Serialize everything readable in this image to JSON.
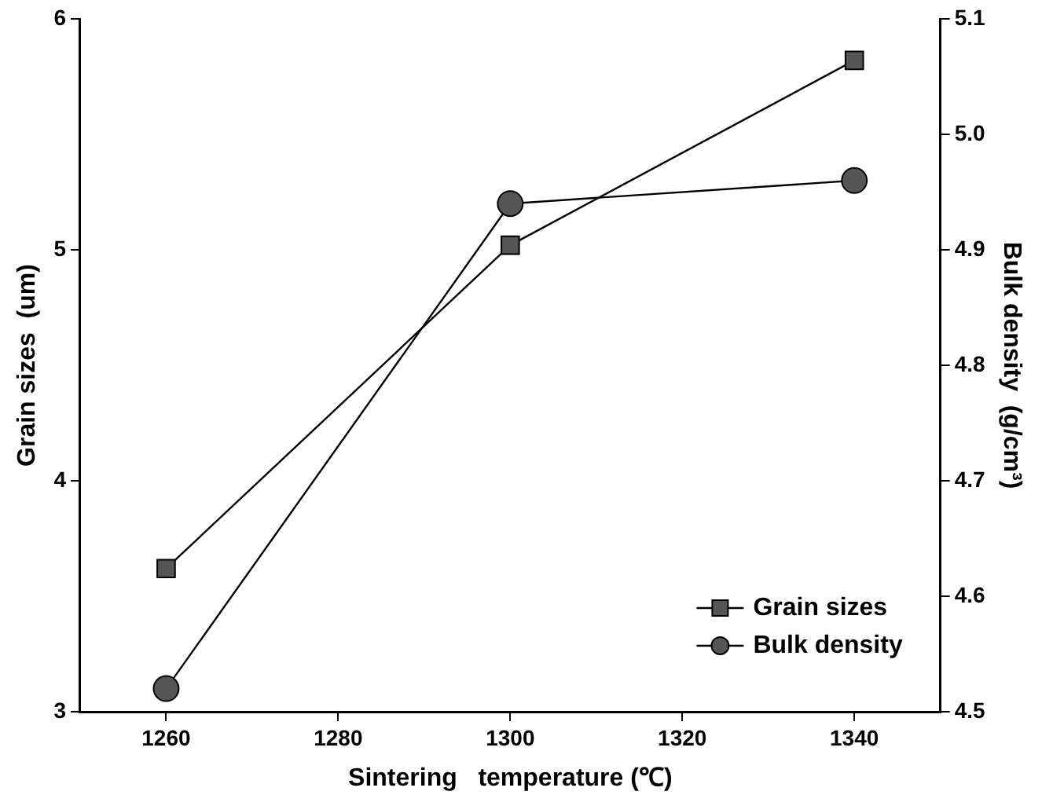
{
  "chart_data": {
    "type": "line",
    "xlabel": "Sintering   temperature (℃)",
    "ylabel": "Grain sizes  (um)",
    "y2label": "Bulk density  (g/cm³)",
    "x": [
      1260,
      1300,
      1340
    ],
    "series": [
      {
        "name": "Grain sizes",
        "color": "#555555",
        "marker": "square",
        "values": [
          3.62,
          5.02,
          5.82
        ]
      },
      {
        "name": "Bulk density",
        "color": "#555555",
        "marker": "circle",
        "axis": "y2",
        "values": [
          4.52,
          4.94,
          4.96
        ]
      }
    ],
    "xlim": [
      1250,
      1350
    ],
    "xticks": [
      1260,
      1280,
      1300,
      1320,
      1340
    ],
    "ylim": [
      3,
      6
    ],
    "yticks": [
      3,
      4,
      5,
      6
    ],
    "y2lim": [
      4.5,
      5.1
    ],
    "y2ticks": [
      4.5,
      4.6,
      4.7,
      4.8,
      4.9,
      {
        "value": 5,
        "label": "5.0"
      },
      5.1
    ],
    "legend": "bottom right",
    "grid": false
  }
}
